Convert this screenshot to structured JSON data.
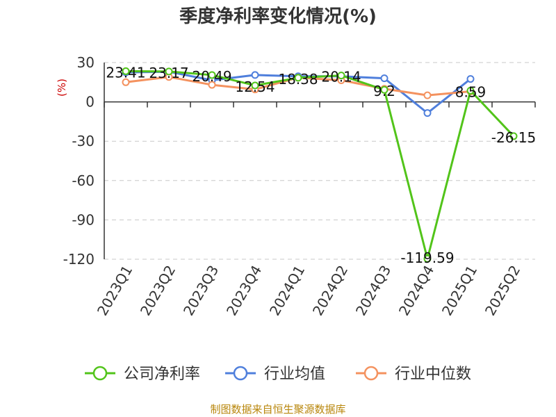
{
  "chart_data": {
    "type": "line",
    "title": "季度净利率变化情况(%)",
    "ylabel": "(%)",
    "ylim": [
      -120,
      30
    ],
    "yticks": [
      30,
      0,
      -30,
      -60,
      -90,
      -120
    ],
    "categories": [
      "2023Q1",
      "2023Q2",
      "2023Q3",
      "2023Q4",
      "2024Q1",
      "2024Q2",
      "2024Q3",
      "2024Q4",
      "2025Q1",
      "2025Q2"
    ],
    "grid": true,
    "legend_position": "bottom",
    "series": [
      {
        "name": "公司净利率",
        "color": "#52c41a",
        "values": [
          23.41,
          23.17,
          20.49,
          12.54,
          18.38,
          20.14,
          9.2,
          -119.59,
          8.59,
          -26.15
        ],
        "labels": [
          "23.41",
          "23.17",
          "20.49",
          "12.54",
          "18.38",
          "20.14",
          "9.2",
          "-119.59",
          "8.59",
          "-26.15"
        ]
      },
      {
        "name": "行业均值",
        "color": "#4f7fdc",
        "values": [
          22.5,
          23.0,
          16.5,
          20.5,
          19.5,
          19.5,
          18.0,
          -8.5,
          17.5,
          null
        ]
      },
      {
        "name": "行业中位数",
        "color": "#f4925f",
        "values": [
          15.0,
          19.0,
          13.0,
          9.5,
          18.5,
          16.5,
          10.0,
          5.0,
          8.0,
          null
        ]
      }
    ]
  },
  "source": "制图数据来自恒生聚源数据库"
}
